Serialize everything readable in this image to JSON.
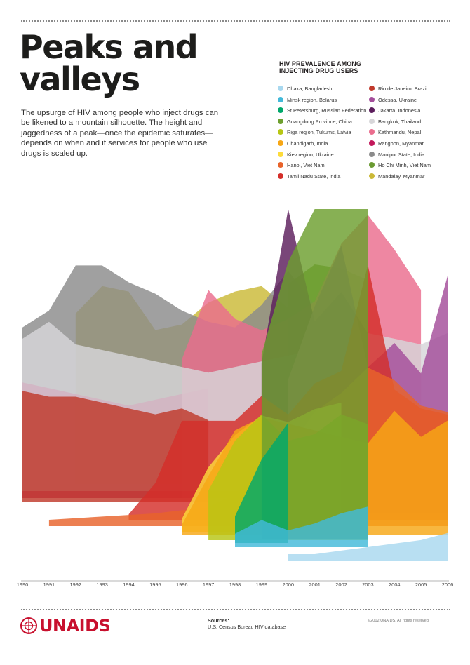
{
  "header": {
    "title_line1": "Peaks and",
    "title_line2": "valleys",
    "intro": "The upsurge of HIV among people who inject drugs can be likened to a mountain silhouette. The height and jaggedness of a peak—once the epidemic saturates—depends on when and if services for people who use drugs is scaled up."
  },
  "legend": {
    "title_line1": "HIV PREVALENCE AMONG",
    "title_line2": "INJECTING DRUG USERS"
  },
  "chart_data": {
    "type": "area",
    "x": [
      "1990",
      "1991",
      "1992",
      "1993",
      "1994",
      "1995",
      "1996",
      "1997",
      "1998",
      "1999",
      "2000",
      "2001",
      "2002",
      "2003",
      "2004",
      "2005",
      "2006"
    ],
    "ylim": [
      0,
      100
    ],
    "grid": false,
    "legend_position": "top-right",
    "series": [
      {
        "name": "Dhaka, Bangladesh",
        "color": "#a8d8ef",
        "points": [
          [
            2000,
            2
          ],
          [
            2001,
            2
          ],
          [
            2002,
            3
          ],
          [
            2003,
            4
          ],
          [
            2004,
            5
          ],
          [
            2005,
            6
          ],
          [
            2006,
            8
          ]
        ]
      },
      {
        "name": "Minsk region, Belarus",
        "color": "#42b9d9",
        "points": [
          [
            1998,
            4
          ],
          [
            1999,
            8
          ],
          [
            2000,
            5
          ],
          [
            2001,
            7
          ],
          [
            2002,
            10
          ],
          [
            2003,
            12
          ]
        ]
      },
      {
        "name": "St Petersburg, Russian Federation",
        "color": "#00a86b",
        "points": [
          [
            1998,
            8
          ],
          [
            1999,
            25
          ],
          [
            2000,
            36
          ]
        ]
      },
      {
        "name": "Guangdong Province, China",
        "color": "#6d9f2e",
        "points": [
          [
            1999,
            56
          ],
          [
            2000,
            84
          ],
          [
            2001,
            100
          ],
          [
            2002,
            100
          ],
          [
            2003,
            100
          ]
        ]
      },
      {
        "name": "Riga region, Tukums, Latvia",
        "color": "#b7c614",
        "points": [
          [
            1997,
            15
          ],
          [
            1998,
            30
          ],
          [
            1999,
            38
          ],
          [
            2000,
            30
          ],
          [
            2001,
            32
          ],
          [
            2002,
            38
          ],
          [
            2003,
            35
          ]
        ]
      },
      {
        "name": "Chandigarh, India",
        "color": "#f7a715",
        "points": [
          [
            1996,
            3
          ],
          [
            1997,
            18
          ],
          [
            1998,
            32
          ],
          [
            1999,
            36
          ],
          [
            2000,
            34
          ],
          [
            2001,
            32
          ],
          [
            2002,
            30
          ],
          [
            2003,
            28
          ],
          [
            2004,
            38
          ],
          [
            2005,
            30
          ],
          [
            2006,
            35
          ]
        ]
      },
      {
        "name": "Kiev region, Ukraine",
        "color": "#fddb3a",
        "points": [
          [
            1996,
            4
          ],
          [
            1997,
            20
          ],
          [
            1998,
            30
          ],
          [
            1999,
            36
          ],
          [
            2000,
            34
          ],
          [
            2001,
            38
          ],
          [
            2002,
            40
          ]
        ]
      },
      {
        "name": "Hanoi, Viet Nam",
        "color": "#e8632b",
        "points": [
          [
            1991,
            2
          ],
          [
            1993,
            3
          ],
          [
            1995,
            4
          ],
          [
            1997,
            6
          ],
          [
            1998,
            10
          ],
          [
            1999,
            18
          ],
          [
            2000,
            24
          ],
          [
            2001,
            36
          ],
          [
            2002,
            42
          ],
          [
            2003,
            50
          ],
          [
            2004,
            46
          ],
          [
            2005,
            38
          ],
          [
            2006,
            36
          ]
        ]
      },
      {
        "name": "Tamil Nadu State, India",
        "color": "#d42e2a",
        "points": [
          [
            1994,
            2
          ],
          [
            1995,
            12
          ],
          [
            1996,
            32
          ],
          [
            1997,
            32
          ],
          [
            1998,
            32
          ],
          [
            1999,
            40
          ],
          [
            2000,
            34
          ],
          [
            2001,
            44
          ],
          [
            2002,
            48
          ],
          [
            2003,
            82
          ],
          [
            2004,
            42
          ],
          [
            2005,
            36
          ],
          [
            2006,
            34
          ]
        ]
      },
      {
        "name": "Rio de Janeiro, Brazil",
        "color": "#c0392b",
        "points": [
          [
            1990,
            38
          ],
          [
            1991,
            36
          ],
          [
            1992,
            36
          ],
          [
            1993,
            34
          ],
          [
            1994,
            32
          ],
          [
            1995,
            30
          ],
          [
            1996,
            32
          ],
          [
            1997,
            28
          ]
        ]
      },
      {
        "name": "Odessa, Ukraine",
        "color": "#a34d9a",
        "points": [
          [
            2000,
            44
          ],
          [
            2001,
            68
          ],
          [
            2002,
            88
          ],
          [
            2003,
            48
          ],
          [
            2004,
            56
          ],
          [
            2005,
            46
          ],
          [
            2006,
            78
          ]
        ]
      },
      {
        "name": "Jakarta, Indonesia",
        "color": "#5c1d5c",
        "points": [
          [
            1999,
            48
          ],
          [
            2000,
            100
          ],
          [
            2001,
            62
          ],
          [
            2002,
            72
          ],
          [
            2003,
            58
          ]
        ]
      },
      {
        "name": "Bangkok, Thailand",
        "color": "#d7d6d9",
        "points": [
          [
            1990,
            54
          ],
          [
            1991,
            60
          ],
          [
            1992,
            52
          ],
          [
            1993,
            50
          ],
          [
            1994,
            48
          ],
          [
            1995,
            46
          ],
          [
            1996,
            44
          ],
          [
            1997,
            42
          ],
          [
            1998,
            44
          ],
          [
            1999,
            46
          ],
          [
            2000,
            48
          ],
          [
            2001,
            50
          ],
          [
            2002,
            52
          ],
          [
            2003,
            56
          ],
          [
            2004,
            54
          ],
          [
            2005,
            52
          ],
          [
            2006,
            56
          ]
        ]
      },
      {
        "name": "Kathmandu, Nepal",
        "color": "#ea6d8e",
        "points": [
          [
            1996,
            48
          ],
          [
            1997,
            72
          ],
          [
            1998,
            62
          ],
          [
            1999,
            58
          ],
          [
            2000,
            62
          ],
          [
            2001,
            68
          ],
          [
            2002,
            88
          ],
          [
            2003,
            98
          ],
          [
            2004,
            86
          ],
          [
            2005,
            72
          ]
        ]
      },
      {
        "name": "Rangoon, Myanmar",
        "color": "#c2185b",
        "points": [
          [
            1990,
            40
          ],
          [
            1991,
            38
          ],
          [
            1992,
            36
          ],
          [
            1993,
            34
          ],
          [
            1994,
            32
          ],
          [
            1995,
            34
          ],
          [
            1996,
            36
          ],
          [
            1997,
            38
          ]
        ]
      },
      {
        "name": "Manipur State, India",
        "color": "#8b8b8b",
        "points": [
          [
            1990,
            58
          ],
          [
            1991,
            64
          ],
          [
            1992,
            80
          ],
          [
            1993,
            80
          ],
          [
            1994,
            74
          ],
          [
            1995,
            70
          ],
          [
            1996,
            64
          ],
          [
            1997,
            60
          ],
          [
            1998,
            58
          ],
          [
            1999,
            66
          ],
          [
            2000,
            78
          ],
          [
            2001,
            66
          ],
          [
            2002,
            62
          ]
        ]
      },
      {
        "name": "Ho Chi Minh, Viet Nam",
        "color": "#6a9a32",
        "points": [
          [
            2000,
            62
          ],
          [
            2001,
            72
          ],
          [
            2002,
            70
          ],
          [
            2003,
            64
          ]
        ]
      },
      {
        "name": "Mandalay, Myanmar",
        "color": "#cbb937",
        "points": [
          [
            1992,
            62
          ],
          [
            1993,
            72
          ],
          [
            1994,
            70
          ],
          [
            1995,
            56
          ],
          [
            1996,
            58
          ],
          [
            1997,
            66
          ],
          [
            1998,
            70
          ],
          [
            1999,
            72
          ],
          [
            2000,
            64
          ]
        ]
      }
    ]
  },
  "sources": {
    "heading": "Sources:",
    "text": "U.S. Census Bureau HIV database"
  },
  "copyright": "©2012 UNAIDS. All rights reserved.",
  "logo": {
    "text": "UNAIDS",
    "color": "#c8102e"
  }
}
